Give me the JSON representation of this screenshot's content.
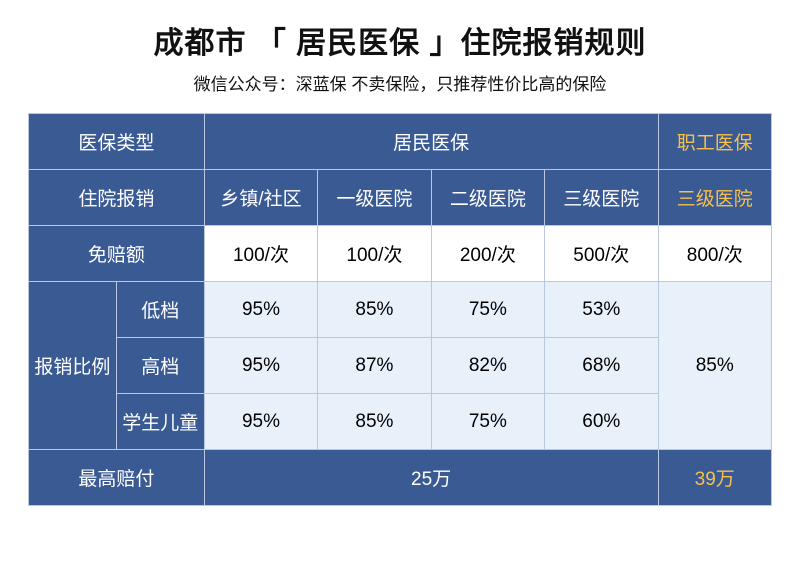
{
  "title": "成都市 「 居民医保 」住院报销规则",
  "subtitle": "微信公众号：深蓝保   不卖保险，只推荐性价比高的保险",
  "colors": {
    "header_bg": "#3a5a94",
    "header_text": "#ffffff",
    "gold_text": "#f6c04c",
    "border": "#b9c8e0",
    "light_bg": "#e8f0fa",
    "white_bg": "#ffffff",
    "body_text": "#111111"
  },
  "typography": {
    "title_fontsize": 30,
    "subtitle_fontsize": 17,
    "cell_fontsize": 19,
    "font_family": "Microsoft YaHei"
  },
  "table": {
    "type": "table",
    "row1": {
      "c1": "医保类型",
      "c2": "居民医保",
      "c3": "职工医保"
    },
    "row2": {
      "c1": "住院报销",
      "h": [
        "乡镇/社区",
        "一级医院",
        "二级医院",
        "三级医院"
      ],
      "c3": "三级医院"
    },
    "row3": {
      "c1": "免赔额",
      "v": [
        "100/次",
        "100/次",
        "200/次",
        "500/次"
      ],
      "c3": "800/次"
    },
    "ratio_label": "报销比例",
    "tiers": [
      {
        "name": "低档",
        "v": [
          "95%",
          "85%",
          "75%",
          "53%"
        ]
      },
      {
        "name": "高档",
        "v": [
          "95%",
          "87%",
          "82%",
          "68%"
        ]
      },
      {
        "name": "学生儿童",
        "v": [
          "95%",
          "85%",
          "75%",
          "60%"
        ]
      }
    ],
    "ratio_right": "85%",
    "row_last": {
      "c1": "最高赔付",
      "c2": "25万",
      "c3": "39万"
    }
  }
}
